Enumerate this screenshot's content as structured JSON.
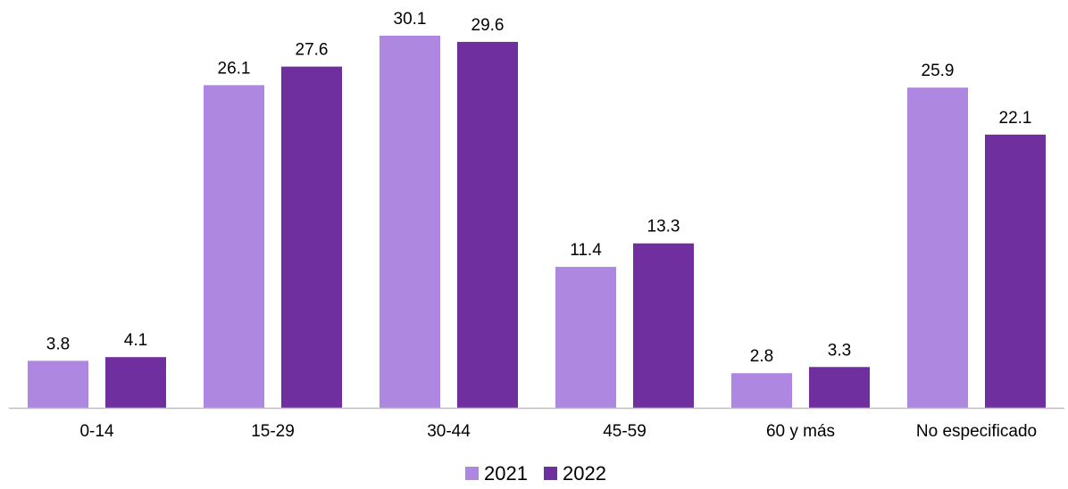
{
  "chart_data": {
    "type": "bar",
    "title": "",
    "xlabel": "",
    "ylabel": "",
    "categories": [
      "0-14",
      "15-29",
      "30-44",
      "45-59",
      "60 y más",
      "No especificado"
    ],
    "series": [
      {
        "name": "2021",
        "color": "#ad87e0",
        "values": [
          3.8,
          26.1,
          30.1,
          11.4,
          2.8,
          25.9
        ],
        "labels": [
          "3.8",
          "26.1",
          "30.1",
          "11.4",
          "2.8",
          "25.9"
        ]
      },
      {
        "name": "2022",
        "color": "#6f2f9f",
        "values": [
          4.1,
          27.6,
          29.6,
          13.3,
          3.3,
          22.1
        ],
        "labels": [
          "4.1",
          "27.6",
          "29.6",
          "13.3",
          "3.3",
          "22.1"
        ]
      }
    ],
    "ylim": [
      0,
      30.1
    ],
    "grid": false,
    "legend_position": "bottom-center",
    "axis_color": "#bfbfbf"
  }
}
